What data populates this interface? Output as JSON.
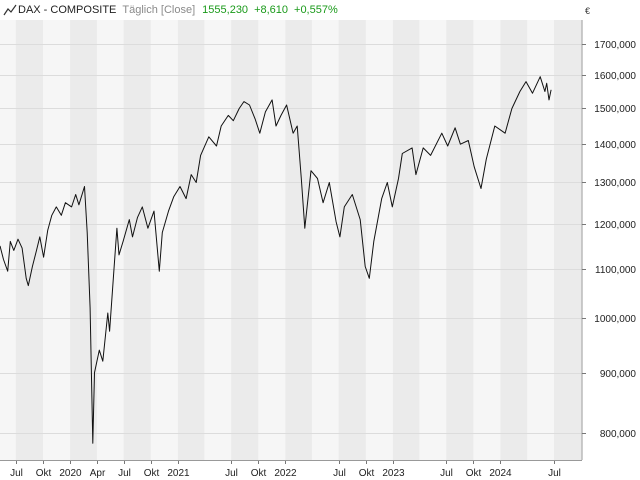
{
  "header": {
    "instrument": "DAX - COMPOSITE",
    "mode": "Täglich [Close]",
    "last": "1555,230",
    "change_abs": "+8,610",
    "change_pct": "+0,557%",
    "currency": "€",
    "icon": "line-chart-icon",
    "colors": {
      "up": "#1a9a1a",
      "muted": "#8a8a8a"
    }
  },
  "chart_data": {
    "type": "line",
    "title": "DAX - COMPOSITE",
    "subtitle": "Täglich [Close]",
    "xlabel": "",
    "ylabel": "",
    "y_scale": "log",
    "ylim": [
      760000,
      1780000
    ],
    "yticks": [
      800000,
      900000,
      1000000,
      1100000,
      1200000,
      1300000,
      1400000,
      1500000,
      1600000,
      1700000
    ],
    "ytick_labels": [
      "800,000",
      "900,000",
      "1000,000",
      "1100,000",
      "1200,000",
      "1300,000",
      "1400,000",
      "1500,000",
      "1600,000",
      "1700,000"
    ],
    "xlim": [
      "2019-05-08",
      "2024-10-04"
    ],
    "xticks": [
      {
        "date": "2019-07-01",
        "label": "Jul"
      },
      {
        "date": "2019-10-01",
        "label": "Okt"
      },
      {
        "date": "2020-01-01",
        "label": "2020"
      },
      {
        "date": "2020-04-01",
        "label": "Apr"
      },
      {
        "date": "2020-07-01",
        "label": "Jul"
      },
      {
        "date": "2020-10-01",
        "label": "Okt"
      },
      {
        "date": "2021-01-01",
        "label": "2021"
      },
      {
        "date": "2021-07-01",
        "label": "Jul"
      },
      {
        "date": "2021-10-01",
        "label": "Okt"
      },
      {
        "date": "2022-01-01",
        "label": "2022"
      },
      {
        "date": "2022-07-01",
        "label": "Jul"
      },
      {
        "date": "2022-10-01",
        "label": "Okt"
      },
      {
        "date": "2023-01-01",
        "label": "2023"
      },
      {
        "date": "2023-07-01",
        "label": "Jul"
      },
      {
        "date": "2023-10-01",
        "label": "Okt"
      },
      {
        "date": "2024-01-01",
        "label": "2024"
      },
      {
        "date": "2024-07-01",
        "label": "Jul"
      }
    ],
    "grid": true,
    "series": [
      {
        "color": "#111111",
        "points": [
          [
            "2019-05-08",
            1150000
          ],
          [
            "2019-05-20",
            1120000
          ],
          [
            "2019-06-03",
            1095000
          ],
          [
            "2019-06-12",
            1160000
          ],
          [
            "2019-06-24",
            1140000
          ],
          [
            "2019-07-08",
            1165000
          ],
          [
            "2019-07-22",
            1145000
          ],
          [
            "2019-08-05",
            1080000
          ],
          [
            "2019-08-12",
            1065000
          ],
          [
            "2019-08-26",
            1105000
          ],
          [
            "2019-09-09",
            1140000
          ],
          [
            "2019-09-20",
            1170000
          ],
          [
            "2019-10-03",
            1125000
          ],
          [
            "2019-10-17",
            1185000
          ],
          [
            "2019-10-31",
            1220000
          ],
          [
            "2019-11-15",
            1240000
          ],
          [
            "2019-12-02",
            1220000
          ],
          [
            "2019-12-16",
            1250000
          ],
          [
            "2020-01-06",
            1240000
          ],
          [
            "2020-01-20",
            1270000
          ],
          [
            "2020-01-31",
            1245000
          ],
          [
            "2020-02-19",
            1290000
          ],
          [
            "2020-02-28",
            1180000
          ],
          [
            "2020-03-09",
            1020000
          ],
          [
            "2020-03-18",
            785000
          ],
          [
            "2020-03-24",
            900000
          ],
          [
            "2020-04-09",
            940000
          ],
          [
            "2020-04-21",
            920000
          ],
          [
            "2020-05-08",
            1010000
          ],
          [
            "2020-05-14",
            975000
          ],
          [
            "2020-05-29",
            1100000
          ],
          [
            "2020-06-08",
            1190000
          ],
          [
            "2020-06-15",
            1130000
          ],
          [
            "2020-06-29",
            1160000
          ],
          [
            "2020-07-20",
            1210000
          ],
          [
            "2020-07-31",
            1170000
          ],
          [
            "2020-08-17",
            1215000
          ],
          [
            "2020-09-02",
            1240000
          ],
          [
            "2020-09-21",
            1190000
          ],
          [
            "2020-10-12",
            1230000
          ],
          [
            "2020-10-30",
            1095000
          ],
          [
            "2020-11-09",
            1180000
          ],
          [
            "2020-11-30",
            1230000
          ],
          [
            "2020-12-18",
            1265000
          ],
          [
            "2021-01-08",
            1290000
          ],
          [
            "2021-01-29",
            1260000
          ],
          [
            "2021-02-15",
            1320000
          ],
          [
            "2021-03-04",
            1300000
          ],
          [
            "2021-03-19",
            1370000
          ],
          [
            "2021-04-16",
            1420000
          ],
          [
            "2021-05-12",
            1395000
          ],
          [
            "2021-05-28",
            1450000
          ],
          [
            "2021-06-21",
            1480000
          ],
          [
            "2021-07-08",
            1465000
          ],
          [
            "2021-07-28",
            1500000
          ],
          [
            "2021-08-13",
            1520000
          ],
          [
            "2021-09-01",
            1510000
          ],
          [
            "2021-09-20",
            1470000
          ],
          [
            "2021-10-06",
            1430000
          ],
          [
            "2021-10-25",
            1490000
          ],
          [
            "2021-11-17",
            1525000
          ],
          [
            "2021-11-30",
            1450000
          ],
          [
            "2021-12-17",
            1480000
          ],
          [
            "2022-01-05",
            1510000
          ],
          [
            "2022-01-27",
            1430000
          ],
          [
            "2022-02-10",
            1450000
          ],
          [
            "2022-02-24",
            1310000
          ],
          [
            "2022-03-08",
            1190000
          ],
          [
            "2022-03-29",
            1330000
          ],
          [
            "2022-04-20",
            1310000
          ],
          [
            "2022-05-09",
            1250000
          ],
          [
            "2022-05-30",
            1300000
          ],
          [
            "2022-06-22",
            1205000
          ],
          [
            "2022-07-05",
            1170000
          ],
          [
            "2022-07-20",
            1240000
          ],
          [
            "2022-08-16",
            1270000
          ],
          [
            "2022-09-12",
            1210000
          ],
          [
            "2022-09-29",
            1105000
          ],
          [
            "2022-10-13",
            1080000
          ],
          [
            "2022-10-28",
            1160000
          ],
          [
            "2022-11-24",
            1260000
          ],
          [
            "2022-12-13",
            1300000
          ],
          [
            "2022-12-30",
            1240000
          ],
          [
            "2023-01-20",
            1310000
          ],
          [
            "2023-02-02",
            1375000
          ],
          [
            "2023-03-07",
            1390000
          ],
          [
            "2023-03-20",
            1320000
          ],
          [
            "2023-04-14",
            1390000
          ],
          [
            "2023-05-09",
            1370000
          ],
          [
            "2023-06-16",
            1430000
          ],
          [
            "2023-07-06",
            1395000
          ],
          [
            "2023-07-31",
            1445000
          ],
          [
            "2023-08-18",
            1400000
          ],
          [
            "2023-09-14",
            1410000
          ],
          [
            "2023-10-04",
            1340000
          ],
          [
            "2023-10-27",
            1285000
          ],
          [
            "2023-11-14",
            1360000
          ],
          [
            "2023-12-13",
            1450000
          ],
          [
            "2024-01-17",
            1430000
          ],
          [
            "2024-02-09",
            1500000
          ],
          [
            "2024-03-07",
            1550000
          ],
          [
            "2024-03-28",
            1580000
          ],
          [
            "2024-04-19",
            1545000
          ],
          [
            "2024-05-15",
            1595000
          ],
          [
            "2024-05-31",
            1550000
          ],
          [
            "2024-06-06",
            1575000
          ],
          [
            "2024-06-14",
            1525000
          ],
          [
            "2024-06-21",
            1555230
          ]
        ]
      }
    ]
  }
}
